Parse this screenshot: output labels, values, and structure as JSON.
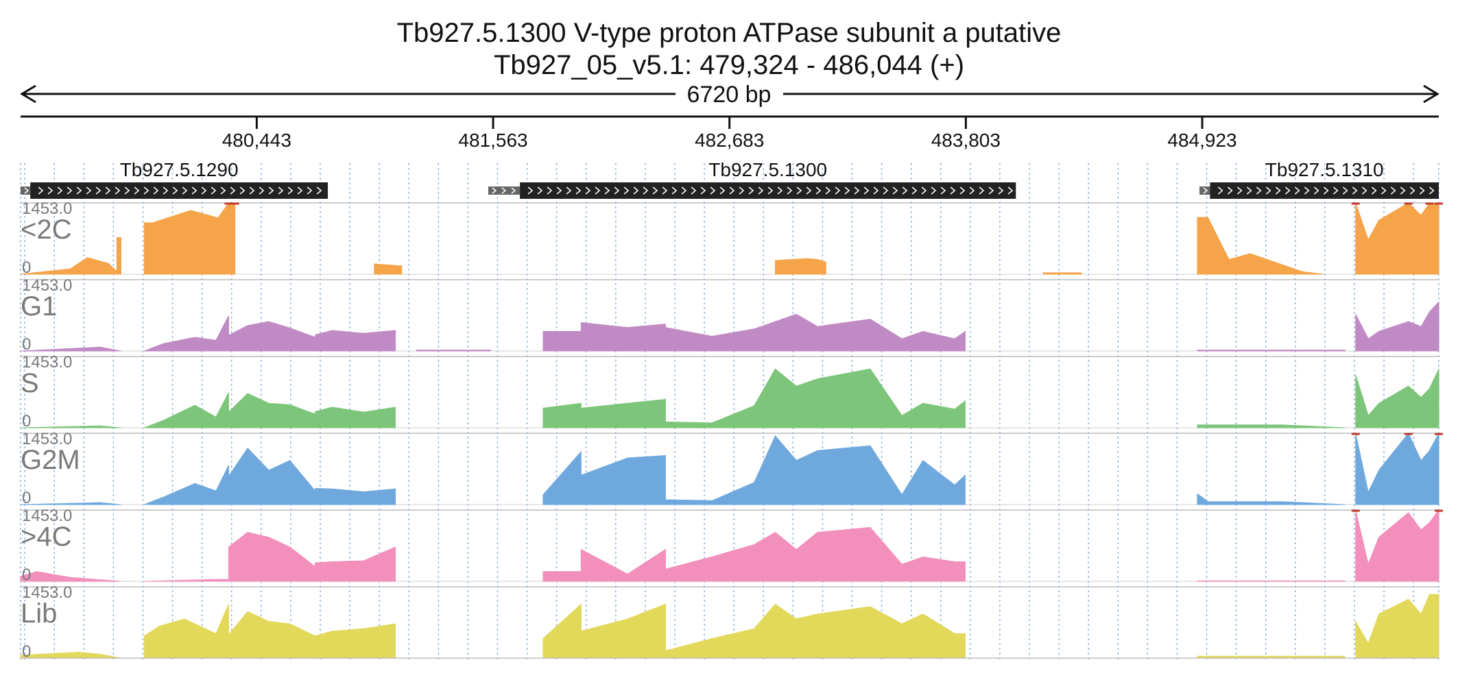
{
  "chart_data": {
    "type": "area",
    "title": "Tb927.5.1300  V-type proton ATPase subunit a  putative",
    "subtitle": "Tb927_05_v5.1: 479,324 - 486,044 (+)",
    "span_label": "6720 bp",
    "x_range": [
      479324,
      486044
    ],
    "x_ticks": [
      480443,
      481563,
      482683,
      483803,
      484923
    ],
    "x_tick_labels": [
      "480,443",
      "481,563",
      "482,683",
      "483,803",
      "484,923"
    ],
    "grid": true,
    "genes": [
      {
        "name": "Tb927.5.1290",
        "start": 479370,
        "end": 480780,
        "utr_start": 479324,
        "strand": "+"
      },
      {
        "name": "Tb927.5.1300",
        "start": 481690,
        "end": 484040,
        "utr_start": 481540,
        "strand": "+"
      },
      {
        "name": "Tb927.5.1310",
        "start": 484960,
        "end": 486044,
        "utr_start": 484910,
        "strand": "+"
      }
    ],
    "tracks": [
      {
        "name": "<2C",
        "ymax_label": "1453.0",
        "ymin_label": "0",
        "color": "#f5a44a",
        "segments": [
          {
            "x": [
              479324,
              479560,
              479640,
              479740,
              479780,
              479780,
              479800,
              479800
            ],
            "y": [
              0,
              110,
              340,
              220,
              60,
              750,
              750,
              0
            ]
          },
          {
            "x": [
              479910,
              479910,
              479950,
              480130,
              480260,
              480310,
              480310,
              480340,
              480340
            ],
            "y": [
              0,
              1050,
              1050,
              1300,
              1150,
              1500,
              1500,
              1500,
              0
            ]
          },
          {
            "x": [
              481000,
              481000,
              481130,
              481130
            ],
            "y": [
              0,
              210,
              170,
              0
            ]
          },
          {
            "x": [
              482900,
              482900,
              483050,
              483100,
              483140,
              483140
            ],
            "y": [
              0,
              280,
              320,
              300,
              250,
              0
            ]
          },
          {
            "x": [
              484170,
              484170,
              484350,
              484350
            ],
            "y": [
              0,
              30,
              30,
              0
            ]
          },
          {
            "x": [
              484900,
              484900,
              484950,
              485050,
              485150,
              485400,
              485500
            ],
            "y": [
              0,
              1160,
              1160,
              300,
              420,
              50,
              0
            ]
          },
          {
            "x": [
              485650,
              485650,
              485710,
              485760,
              485900,
              485960,
              486000,
              486044
            ],
            "y": [
              0,
              1500,
              700,
              1100,
              1500,
              1200,
              1500,
              1500
            ]
          }
        ]
      },
      {
        "name": "G1",
        "ymax_label": "1453.0",
        "ymin_label": "0",
        "color": "#c08ac4",
        "segments": [
          {
            "x": [
              479324,
              479700,
              479800
            ],
            "y": [
              0,
              80,
              0
            ]
          },
          {
            "x": [
              479910,
              480000,
              480150,
              480250,
              480310,
              480310,
              480400,
              480500,
              480600,
              480720,
              480720,
              480800,
              480950,
              481100,
              481100
            ],
            "y": [
              0,
              150,
              280,
              220,
              720,
              320,
              520,
              600,
              470,
              280,
              330,
              420,
              360,
              420,
              0
            ]
          },
          {
            "x": [
              481200,
              481550
            ],
            "y": [
              20,
              20
            ]
          },
          {
            "x": [
              481800,
              481800,
              481980,
              481980,
              482200,
              482380,
              482380,
              482600,
              482800,
              482900,
              483000,
              483100,
              483350,
              483500,
              483600,
              483750,
              483800,
              483800
            ],
            "y": [
              0,
              400,
              400,
              580,
              480,
              550,
              480,
              300,
              450,
              600,
              750,
              500,
              650,
              250,
              400,
              250,
              400,
              0
            ]
          },
          {
            "x": [
              484900,
              485600
            ],
            "y": [
              20,
              20
            ]
          },
          {
            "x": [
              485650,
              485650,
              485710,
              485760,
              485900,
              485960,
              486000,
              486044
            ],
            "y": [
              0,
              750,
              250,
              400,
              600,
              500,
              800,
              1000
            ]
          }
        ]
      },
      {
        "name": "S",
        "ymax_label": "1453.0",
        "ymin_label": "0",
        "color": "#7dc57a",
        "segments": [
          {
            "x": [
              479324,
              479700,
              479800
            ],
            "y": [
              0,
              40,
              0
            ]
          },
          {
            "x": [
              479910,
              480000,
              480150,
              480250,
              480310,
              480310,
              480400,
              480500,
              480600,
              480720,
              480720,
              480800,
              480950,
              481100,
              481100
            ],
            "y": [
              0,
              150,
              460,
              220,
              720,
              320,
              700,
              500,
              470,
              280,
              330,
              420,
              320,
              420,
              0
            ]
          },
          {
            "x": [
              481800,
              481800,
              481980,
              481980,
              482200,
              482380,
              482380,
              482600,
              482800,
              482900,
              483000,
              483100,
              483350,
              483500,
              483600,
              483750,
              483800,
              483800
            ],
            "y": [
              0,
              400,
              500,
              400,
              500,
              580,
              120,
              100,
              450,
              1200,
              850,
              1000,
              1200,
              250,
              500,
              380,
              550,
              0
            ]
          },
          {
            "x": [
              484900,
              485300,
              485600
            ],
            "y": [
              60,
              60,
              0
            ]
          },
          {
            "x": [
              485650,
              485650,
              485710,
              485760,
              485900,
              485960,
              486000,
              486044
            ],
            "y": [
              0,
              1080,
              250,
              500,
              850,
              620,
              800,
              1200
            ]
          }
        ]
      },
      {
        "name": "G2M",
        "ymax_label": "1453.0",
        "ymin_label": "0",
        "color": "#6fa8dc",
        "segments": [
          {
            "x": [
              479324,
              479700,
              479800
            ],
            "y": [
              0,
              40,
              0
            ]
          },
          {
            "x": [
              479910,
              480000,
              480150,
              480250,
              480310,
              480310,
              480400,
              480500,
              480600,
              480720,
              480720,
              480800,
              480950,
              481100,
              481100
            ],
            "y": [
              0,
              150,
              430,
              280,
              800,
              580,
              1150,
              700,
              900,
              280,
              330,
              320,
              260,
              320,
              0
            ]
          },
          {
            "x": [
              481800,
              481800,
              481980,
              481980,
              482200,
              482380,
              482380,
              482600,
              482800,
              482900,
              483000,
              483100,
              483350,
              483500,
              483600,
              483750,
              483800,
              483800
            ],
            "y": [
              0,
              200,
              1080,
              600,
              950,
              1000,
              100,
              80,
              450,
              1400,
              900,
              1100,
              1200,
              200,
              900,
              400,
              600,
              0
            ]
          },
          {
            "x": [
              484900,
              484900,
              484950,
              485300,
              485600
            ],
            "y": [
              0,
              220,
              60,
              60,
              0
            ]
          },
          {
            "x": [
              485650,
              485650,
              485710,
              485760,
              485900,
              485960,
              486000,
              486044
            ],
            "y": [
              0,
              1500,
              250,
              700,
              1500,
              900,
              1100,
              1500
            ]
          }
        ]
      },
      {
        "name": ">4C",
        "ymax_label": "1453.0",
        "ymin_label": "0",
        "color": "#f28fbb",
        "segments": [
          {
            "x": [
              479324,
              479400,
              479560,
              479800
            ],
            "y": [
              100,
              200,
              80,
              0
            ]
          },
          {
            "x": [
              479910,
              480250,
              480310,
              480310,
              480400,
              480500,
              480600,
              480720,
              480720,
              480800,
              480950,
              481100,
              481100
            ],
            "y": [
              0,
              40,
              40,
              700,
              1000,
              900,
              700,
              300,
              380,
              400,
              420,
              700,
              0
            ]
          },
          {
            "x": [
              481800,
              481800,
              481980,
              481980,
              482200,
              482380,
              482380,
              482600,
              482800,
              482900,
              483000,
              483100,
              483350,
              483500,
              483600,
              483750,
              483800,
              483800
            ],
            "y": [
              0,
              200,
              200,
              650,
              150,
              650,
              250,
              500,
              750,
              1000,
              650,
              1000,
              1100,
              350,
              500,
              400,
              400,
              0
            ]
          },
          {
            "x": [
              484900,
              485600
            ],
            "y": [
              10,
              10
            ]
          },
          {
            "x": [
              485650,
              485650,
              485710,
              485760,
              485900,
              485960,
              486000,
              486044
            ],
            "y": [
              0,
              1500,
              350,
              900,
              1400,
              1050,
              1200,
              1500
            ]
          }
        ]
      },
      {
        "name": "Lib",
        "ymax_label": "1453.0",
        "ymin_label": "0",
        "color": "#e2d85a",
        "segments": [
          {
            "x": [
              479324,
              479600,
              479700,
              479800
            ],
            "y": [
              60,
              120,
              80,
              0
            ]
          },
          {
            "x": [
              479910,
              479910,
              479980,
              480100,
              480250,
              480310,
              480310,
              480400,
              480500,
              480600,
              480720,
              480720,
              480800,
              480950,
              481100,
              481100
            ],
            "y": [
              0,
              450,
              650,
              800,
              500,
              1100,
              480,
              950,
              750,
              700,
              450,
              450,
              550,
              600,
              700,
              0
            ]
          },
          {
            "x": [
              481800,
              481800,
              481980,
              481980,
              482200,
              482380,
              482380,
              482600,
              482800,
              482900,
              483000,
              483100,
              483350,
              483500,
              483600,
              483750,
              483800,
              483800
            ],
            "y": [
              0,
              400,
              1100,
              550,
              800,
              1100,
              150,
              400,
              600,
              1100,
              800,
              900,
              1050,
              700,
              900,
              500,
              500,
              0
            ]
          },
          {
            "x": [
              484900,
              485600
            ],
            "y": [
              40,
              40
            ]
          },
          {
            "x": [
              485650,
              485650,
              485710,
              485760,
              485900,
              485960,
              486000,
              486044
            ],
            "y": [
              0,
              750,
              300,
              900,
              1200,
              900,
              1300,
              1300
            ]
          }
        ]
      }
    ]
  }
}
